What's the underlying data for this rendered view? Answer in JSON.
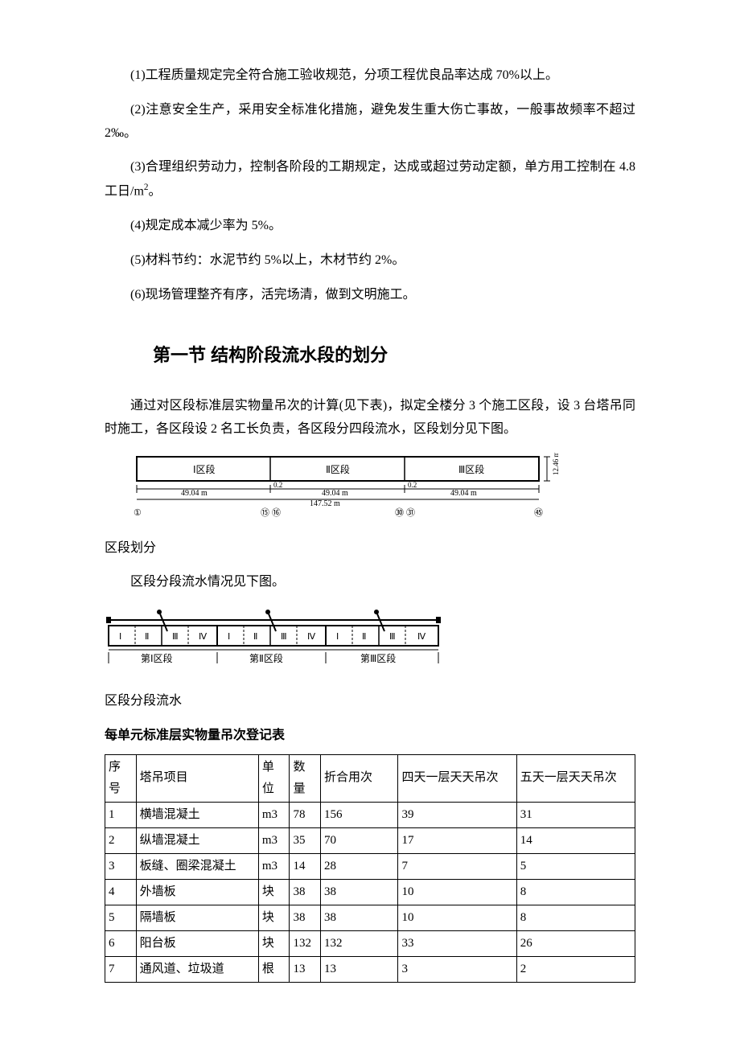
{
  "paragraphs": {
    "p1": "(1)工程质量规定完全符合施工验收规范，分项工程优良品率达成 70%以上。",
    "p2": "(2)注意安全生产，采用安全标准化措施，避免发生重大伤亡事故，一般事故频率不超过 2‰。",
    "p3_a": "(3)合理组织劳动力，控制各阶段的工期规定，达成或超过劳动定额，单方用工控制在 4.8 工日/m",
    "p3_b": "。",
    "p4": "(4)规定成本减少率为 5%。",
    "p5": "(5)材料节约：水泥节约 5%以上，木材节约 2%。",
    "p6": "(6)现场管理整齐有序，活完场清，做到文明施工。"
  },
  "heading": "第一节 结构阶段流水段的划分",
  "intro": "通过对区段标准层实物量吊次的计算(见下表)，拟定全楼分 3 个施工区段，设 3 台塔吊同时施工，各区段设 2 名工长负责，各区段分四段流水，区段划分见下图。",
  "diagram1": {
    "zone1": "Ⅰ区段",
    "zone2": "Ⅱ区段",
    "zone3": "Ⅲ区段",
    "dim_each": "49.04 m",
    "dim_gap": "0.2",
    "dim_total": "147.52 m",
    "height": "12.46 m",
    "mark1": "①",
    "mark15": "⑮",
    "mark16": "⑯",
    "mark30": "㉚",
    "mark31": "㉛",
    "mark45": "㊺"
  },
  "caption1": "区段划分",
  "intro2": "区段分段流水情况见下图。",
  "diagram2": {
    "sub_labels": [
      "Ⅰ",
      "Ⅱ",
      "Ⅲ",
      "Ⅳ"
    ],
    "zone_label1": "第Ⅰ区段",
    "zone_label2": "第Ⅱ区段",
    "zone_label3": "第Ⅲ区段"
  },
  "caption2": "区段分段流水",
  "table_title": "每单元标准层实物量吊次登记表",
  "table": {
    "headers": [
      "序号",
      "塔吊项目",
      "单位",
      "数量",
      "折合用次",
      "四天一层天天吊次",
      "五天一层天天吊次"
    ],
    "rows": [
      [
        "1",
        "横墙混凝土",
        "m3",
        "78",
        "156",
        "39",
        "31"
      ],
      [
        "2",
        "纵墙混凝土",
        "m3",
        "35",
        "70",
        "17",
        "14"
      ],
      [
        "3",
        "板缝、圈梁混凝土",
        "m3",
        "14",
        "28",
        "7",
        "5"
      ],
      [
        "4",
        "外墙板",
        "块",
        "38",
        "38",
        "10",
        "8"
      ],
      [
        "5",
        "隔墙板",
        "块",
        "38",
        "38",
        "10",
        "8"
      ],
      [
        "6",
        "阳台板",
        "块",
        "132",
        "132",
        "33",
        "26"
      ],
      [
        "7",
        "通风道、垃圾道",
        "根",
        "13",
        "13",
        "3",
        "2"
      ]
    ]
  }
}
